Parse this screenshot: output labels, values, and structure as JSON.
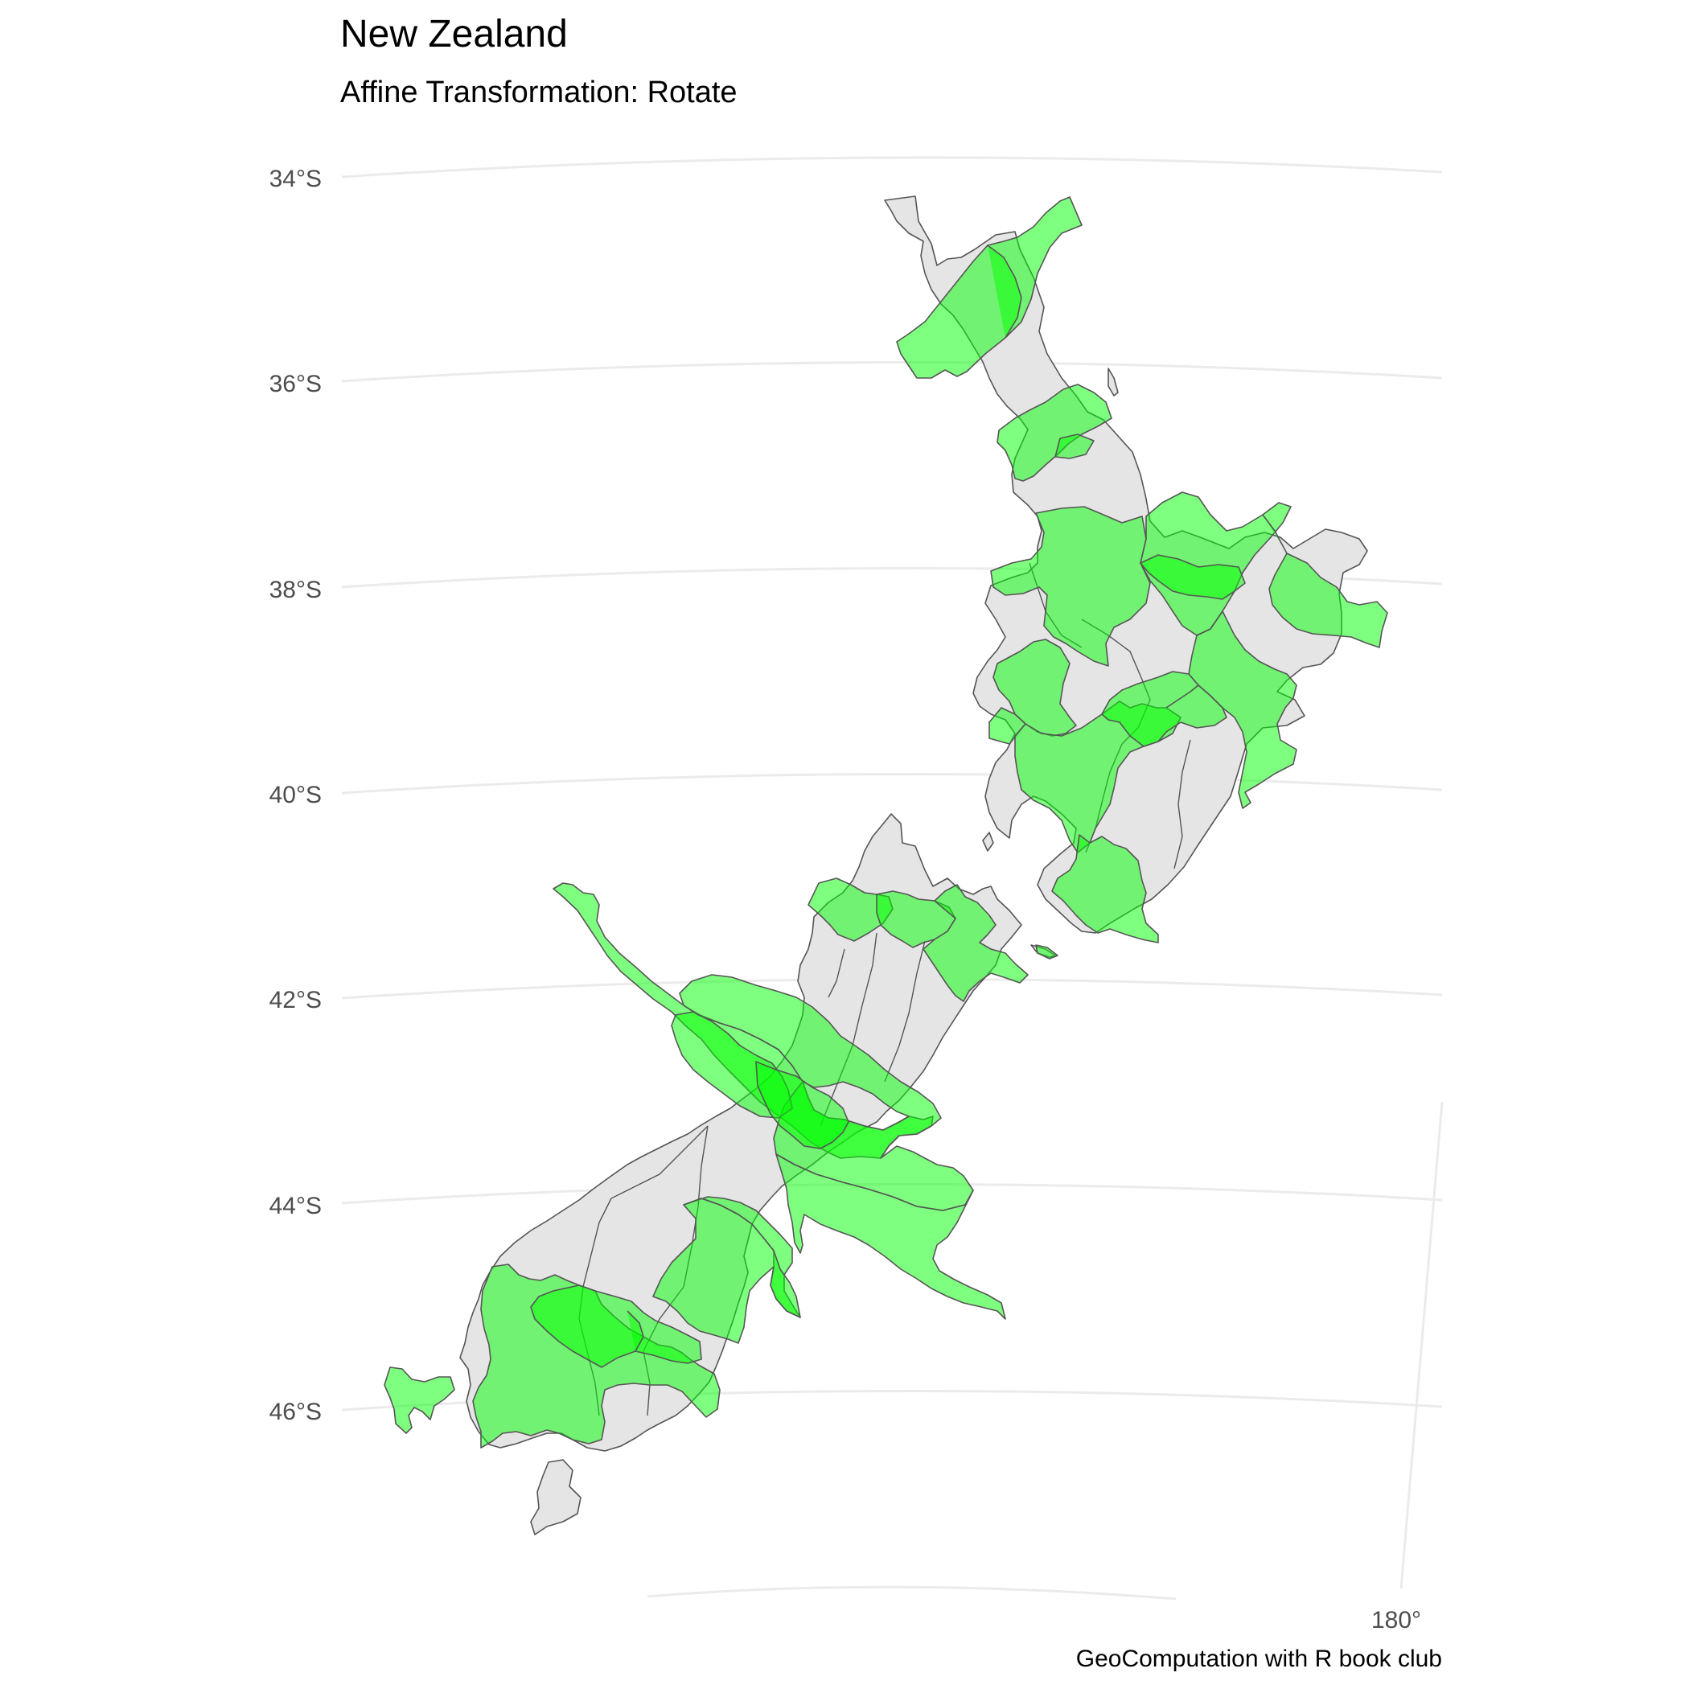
{
  "title": "New Zealand",
  "subtitle": "Affine Transformation: Rotate",
  "caption": "GeoComputation with R book club",
  "colors": {
    "background": "#ffffff",
    "gridline": "#ebebeb",
    "land_fill": "#e5e5e5",
    "highlight_fill": "#00ff00",
    "highlight_alpha": 0.5,
    "border": "#555555"
  },
  "map": {
    "projection": "rotated graticule (affine rotation of New Zealand polygons)",
    "y_axis_ticks": [
      "34°S",
      "36°S",
      "38°S",
      "40°S",
      "42°S",
      "44°S",
      "46°S"
    ],
    "x_axis_ticks": [
      "180°"
    ],
    "layers": [
      {
        "name": "all regions",
        "fill": "#e5e5e5"
      },
      {
        "name": "highlighted regions (rotated)",
        "fill": "#00ff00",
        "alpha": 0.5
      }
    ]
  }
}
